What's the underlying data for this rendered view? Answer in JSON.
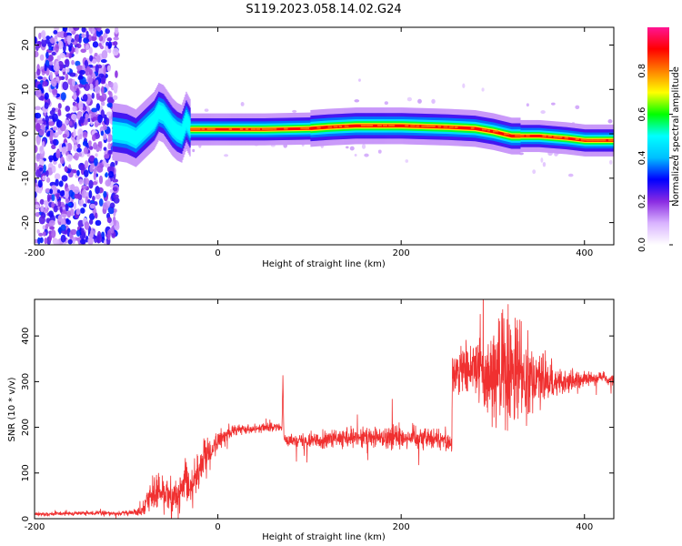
{
  "title": "S119.2023.058.14.02.G24",
  "chart_data": [
    {
      "type": "heatmap",
      "xlabel": "Height of straight line (km)",
      "ylabel": "Frequency (Hz)",
      "xlim": [
        -200,
        432
      ],
      "ylim": [
        -25,
        24
      ],
      "x_ticks": [
        -200,
        0,
        200,
        400
      ],
      "y_ticks": [
        -20,
        -10,
        0,
        10,
        20
      ],
      "colorbar": {
        "label": "Normalized spectral amplitude",
        "range": [
          0,
          1
        ],
        "ticks": [
          "0.0",
          "0.2",
          "0.4",
          "0.6",
          "0.8"
        ],
        "tick_values": [
          0,
          0.2,
          0.4,
          0.6,
          0.8
        ],
        "colors": [
          "#ffffff",
          "#d9b3ff",
          "#8a2be2",
          "#0000ff",
          "#00bfff",
          "#00ffff",
          "#00ff00",
          "#ffff00",
          "#ff8000",
          "#ff0000",
          "#ff1493"
        ]
      },
      "ridge": {
        "x": [
          -115,
          -100,
          -90,
          -80,
          -70,
          -65,
          -60,
          -55,
          -50,
          -45,
          -40,
          -35,
          -30,
          0,
          50,
          100,
          120,
          150,
          200,
          250,
          280,
          300,
          320,
          350,
          380,
          400,
          432
        ],
        "y": [
          0.5,
          0,
          -1,
          1,
          3,
          5,
          4.5,
          3,
          1.5,
          0.5,
          0,
          3,
          1,
          1,
          1,
          1.2,
          1.5,
          1.8,
          1.8,
          1.5,
          1.2,
          0.5,
          -0.5,
          -0.5,
          -1,
          -1.5,
          -1.5
        ]
      },
      "noise_region": {
        "x_min": -200,
        "x_max": -110
      }
    },
    {
      "type": "line",
      "xlabel": "Height of straight line (km)",
      "ylabel": "SNR (10 * v/v)",
      "xlim": [
        -200,
        432
      ],
      "ylim": [
        0,
        480
      ],
      "x_ticks": [
        -200,
        0,
        200,
        400
      ],
      "y_ticks": [
        0,
        100,
        200,
        300,
        400
      ],
      "color": "#f03030",
      "series": [
        {
          "x": [
            -200,
            -150,
            -100,
            -85,
            -75,
            -60,
            -45,
            -35,
            -30,
            -20,
            -10,
            0,
            10,
            20,
            40,
            50,
            60,
            70,
            71,
            72,
            75,
            100,
            150,
            200,
            250,
            255,
            256,
            260,
            280,
            300,
            320,
            340,
            360,
            380,
            400,
            420,
            432
          ],
          "y": [
            10,
            12,
            12,
            15,
            50,
            60,
            40,
            80,
            70,
            110,
            140,
            170,
            185,
            195,
            198,
            200,
            200,
            200,
            320,
            180,
            172,
            172,
            175,
            180,
            175,
            160,
            320,
            320,
            330,
            320,
            310,
            320,
            300,
            300,
            305,
            310,
            300
          ],
          "noise_amplitude": [
            4,
            4,
            5,
            8,
            30,
            40,
            30,
            50,
            40,
            40,
            30,
            20,
            15,
            10,
            8,
            8,
            8,
            8,
            8,
            8,
            10,
            15,
            20,
            25,
            20,
            20,
            40,
            50,
            70,
            100,
            120,
            70,
            40,
            25,
            15,
            12,
            12
          ]
        }
      ]
    }
  ]
}
